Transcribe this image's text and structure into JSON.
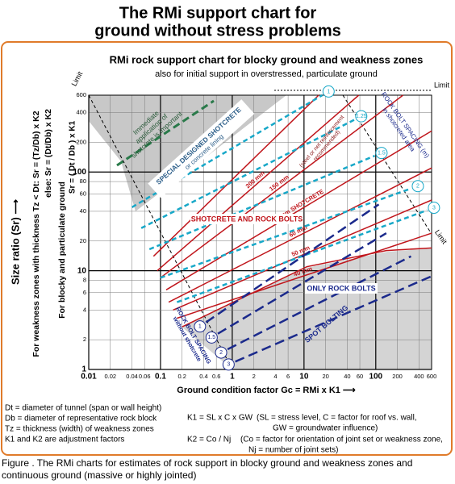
{
  "page_title": [
    "The RMi support chart for",
    "ground without stress problems"
  ],
  "chart_data": {
    "type": "line",
    "title": "RMi rock support chart for blocky ground and weakness zones",
    "subtitle": "also for initial support in overstressed, particulate ground",
    "xlabel": "Ground condition factor   Gc = RMi x K1  ⟶",
    "ylabel": "Size ratio  (Sr)   ⟶",
    "ylabel_notes": [
      "For weakness zones with thickness Tz < Dt: Sr = (Tz/Db) x K2",
      "else: Sr = (Dt/Db) x K2",
      "For blocky and particulate ground",
      "Sr = ( Dt / Db ) x K1"
    ],
    "xscale": "log",
    "yscale": "log",
    "xlim": [
      0.01,
      600
    ],
    "ylim": [
      1,
      600
    ],
    "xticks": [
      0.01,
      0.02,
      0.04,
      0.06,
      0.1,
      0.2,
      0.4,
      0.6,
      1,
      2,
      4,
      6,
      10,
      20,
      40,
      60,
      100,
      200,
      400,
      600
    ],
    "yticks": [
      1,
      2,
      4,
      6,
      8,
      10,
      20,
      40,
      60,
      80,
      100,
      200,
      400,
      600
    ],
    "grid": true,
    "series": [
      {
        "color": "#c0151b",
        "dash": "solid",
        "x": [
          0.08,
          16
        ],
        "values": [
          14,
          600
        ]
      },
      {
        "name": "200 mm",
        "color": "#c0151b",
        "dash": "solid",
        "x": [
          0.09,
          58
        ],
        "values": [
          10,
          600
        ]
      },
      {
        "name": "150 mm",
        "color": "#c0151b",
        "dash": "solid",
        "x": [
          0.1,
          240
        ],
        "values": [
          8.5,
          600
        ]
      },
      {
        "name": "100 mm SHOTCRETE",
        "color": "#c0151b",
        "dash": "solid",
        "x": [
          0.12,
          600
        ],
        "values": [
          6.4,
          260
        ]
      },
      {
        "name": "60 mm",
        "color": "#c0151b",
        "dash": "solid",
        "x": [
          0.13,
          600
        ],
        "values": [
          4.8,
          110
        ]
      },
      {
        "name": "50 mm",
        "color": "#c0151b",
        "dash": "solid",
        "x": [
          0.15,
          600
        ],
        "values": [
          4,
          52
        ]
      },
      {
        "name": "40 mm",
        "color": "#c0151b",
        "dash": "solid",
        "x": [
          0.17,
          600
        ],
        "values": [
          3.3,
          24
        ]
      },
      {
        "color": "#c0151b",
        "dash": "solid",
        "x": [
          0.2,
          11,
          140,
          600
        ],
        "values": [
          2.7,
          11,
          16,
          17
        ]
      },
      {
        "name": "1",
        "color": "#18a8c8",
        "dash": "short",
        "x": [
          0.04,
          18
        ],
        "values": [
          44,
          600
        ]
      },
      {
        "name": "1.25",
        "color": "#18a8c8",
        "dash": "short",
        "x": [
          0.054,
          51
        ],
        "values": [
          27,
          340
        ]
      },
      {
        "name": "1.5",
        "color": "#18a8c8",
        "dash": "short",
        "x": [
          0.07,
          97
        ],
        "values": [
          16.5,
          146
        ]
      },
      {
        "name": "2",
        "color": "#18a8c8",
        "dash": "short",
        "x": [
          0.1,
          310
        ],
        "values": [
          8.5,
          68
        ]
      },
      {
        "name": "3",
        "color": "#18a8c8",
        "dash": "short",
        "x": [
          0.17,
          520
        ],
        "values": [
          4.8,
          41
        ]
      },
      {
        "name": "1",
        "color": "#1b2a8c",
        "dash": "long",
        "x": [
          0.43,
          110
        ],
        "values": [
          3,
          47
        ]
      },
      {
        "name": "1.5",
        "color": "#1b2a8c",
        "dash": "long",
        "x": [
          0.63,
          140
        ],
        "values": [
          2.3,
          24
        ]
      },
      {
        "name": "2",
        "color": "#1b2a8c",
        "dash": "long",
        "x": [
          0.86,
          310
        ],
        "values": [
          1.6,
          14
        ]
      },
      {
        "name": "3",
        "color": "#1b2a8c",
        "dash": "long",
        "x": [
          1.1,
          600
        ],
        "values": [
          1.2,
          8.8
        ]
      }
    ],
    "annotations": {
      "limit": "Limit",
      "immediate": [
        "Immediate",
        "application of",
        "shotcrete is important"
      ],
      "special": [
        "SPECIAL DESIGNED SHOTCRETE",
        "or concrete lining"
      ],
      "reinforcement": [
        "(steel or net reinforcement",
        "recommended)"
      ],
      "shotcrete_bolts": "SHOTCRETE AND ROCK BOLTS",
      "bolt_spacing_shotcrete": [
        "ROCK BOLT SPACING (m)",
        "in shotcreted area"
      ],
      "only_bolts": "ONLY ROCK BOLTS",
      "spot_bolting": "SPOT BOLTING",
      "bolt_spacing_plain": [
        "ROCK BOLT SPACING",
        "without shotcrete"
      ]
    }
  },
  "notes": {
    "definitions": [
      "Dt = diameter of tunnel (span or wall height)",
      "Db = diameter of representative rock block",
      "Tz = thickness (width) of weakness zones",
      "K1 and K2 are adjustment factors"
    ],
    "k1": {
      "formula": "K1 = SL x C x GW",
      "explanation": [
        "(SL = stress level,  C = factor for roof vs. wall,",
        "GW = groundwater influence)"
      ]
    },
    "k2": {
      "formula": "K2 = Co / Nj",
      "explanation": [
        "(Co = factor for orientation of joint set or weakness zone,",
        "Nj = number of joint sets)"
      ]
    }
  },
  "caption": "Figure   .  The RMi charts for estimates of rock support in blocky ground and weakness zones and continuous ground (massive or highly jointed)"
}
